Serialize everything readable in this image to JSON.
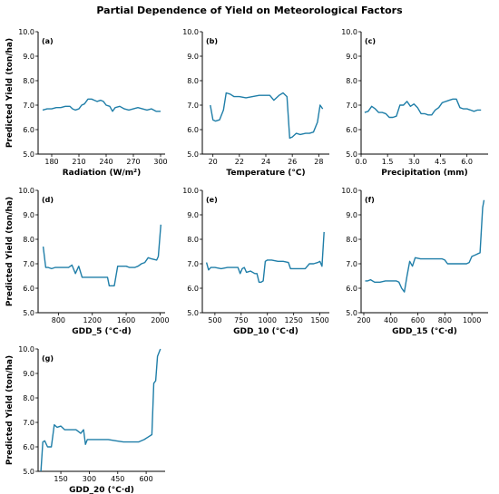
{
  "figure": {
    "title": "Partial Dependence of Yield on Meteorological Factors",
    "ylabel": "Predicted Yield (ton/ha)",
    "line_color": "#1f7ea8"
  },
  "chart_data": [
    {
      "type": "line",
      "panel": "(a)",
      "xlabel": "Radiation (W/m²)",
      "ylabel": "Predicted Yield (ton/ha)",
      "xlim": [
        165,
        305
      ],
      "ylim": [
        5.0,
        10.0
      ],
      "xticks": [
        180,
        210,
        240,
        270,
        300
      ],
      "xtick_labels": [
        "180",
        "210",
        "240",
        "270",
        "300"
      ],
      "yticks": [
        5.0,
        6.0,
        7.0,
        8.0,
        9.0,
        10.0
      ],
      "ytick_labels": [
        "5.0",
        "6.0",
        "7.0",
        "8.0",
        "9.0",
        "10.0"
      ],
      "x": [
        170,
        175,
        180,
        185,
        190,
        195,
        200,
        203,
        206,
        210,
        213,
        216,
        220,
        224,
        227,
        230,
        234,
        237,
        240,
        244,
        247,
        250,
        255,
        260,
        265,
        270,
        275,
        280,
        285,
        290,
        295,
        300
      ],
      "y": [
        6.8,
        6.85,
        6.85,
        6.9,
        6.9,
        6.95,
        6.95,
        6.85,
        6.8,
        6.85,
        7.0,
        7.05,
        7.25,
        7.25,
        7.2,
        7.15,
        7.2,
        7.15,
        7.0,
        6.95,
        6.75,
        6.9,
        6.95,
        6.85,
        6.8,
        6.85,
        6.9,
        6.85,
        6.8,
        6.85,
        6.75,
        6.75
      ]
    },
    {
      "type": "line",
      "panel": "(b)",
      "xlabel": "Temperature (°C)",
      "ylabel": "",
      "xlim": [
        19.2,
        28.8
      ],
      "ylim": [
        5.0,
        10.0
      ],
      "xticks": [
        20,
        22,
        24,
        26,
        28
      ],
      "xtick_labels": [
        "20",
        "22",
        "24",
        "26",
        "28"
      ],
      "yticks": [
        5.0,
        6.0,
        7.0,
        8.0,
        9.0,
        10.0
      ],
      "ytick_labels": [
        "5.0",
        "6.0",
        "7.0",
        "8.0",
        "9.0",
        "10.0"
      ],
      "x": [
        19.8,
        20.0,
        20.2,
        20.5,
        20.8,
        21.0,
        21.3,
        21.6,
        22.0,
        22.5,
        23.0,
        23.5,
        24.0,
        24.3,
        24.6,
        25.0,
        25.3,
        25.6,
        25.8,
        26.0,
        26.3,
        26.6,
        27.0,
        27.3,
        27.6,
        27.9,
        28.1,
        28.3
      ],
      "y": [
        7.0,
        6.4,
        6.35,
        6.4,
        6.8,
        7.5,
        7.45,
        7.35,
        7.35,
        7.3,
        7.35,
        7.4,
        7.4,
        7.4,
        7.2,
        7.4,
        7.5,
        7.35,
        5.65,
        5.7,
        5.85,
        5.8,
        5.85,
        5.85,
        5.9,
        6.3,
        7.0,
        6.85
      ]
    },
    {
      "type": "line",
      "panel": "(c)",
      "xlabel": "Precipitation (mm)",
      "ylabel": "",
      "xlim": [
        0.0,
        7.2
      ],
      "ylim": [
        5.0,
        10.0
      ],
      "xticks": [
        0.0,
        1.5,
        3.0,
        4.5,
        6.0
      ],
      "xtick_labels": [
        "0.0",
        "1.5",
        "3.0",
        "4.5",
        "6.0"
      ],
      "yticks": [
        5.0,
        6.0,
        7.0,
        8.0,
        9.0,
        10.0
      ],
      "ytick_labels": [
        "5.0",
        "6.0",
        "7.0",
        "8.0",
        "9.0",
        "10.0"
      ],
      "x": [
        0.2,
        0.4,
        0.6,
        0.8,
        1.0,
        1.2,
        1.4,
        1.6,
        1.8,
        2.0,
        2.2,
        2.4,
        2.6,
        2.8,
        3.0,
        3.2,
        3.4,
        3.6,
        3.8,
        4.0,
        4.2,
        4.4,
        4.6,
        4.8,
        5.0,
        5.2,
        5.4,
        5.6,
        5.8,
        6.0,
        6.2,
        6.4,
        6.6,
        6.8
      ],
      "y": [
        6.7,
        6.75,
        6.95,
        6.85,
        6.7,
        6.7,
        6.65,
        6.5,
        6.5,
        6.55,
        7.0,
        7.0,
        7.15,
        6.95,
        7.05,
        6.9,
        6.65,
        6.65,
        6.6,
        6.6,
        6.8,
        6.9,
        7.1,
        7.15,
        7.2,
        7.25,
        7.25,
        6.9,
        6.85,
        6.85,
        6.8,
        6.75,
        6.8,
        6.8
      ]
    },
    {
      "type": "line",
      "panel": "(d)",
      "xlabel": "GDD_5 (°C·d)",
      "ylabel": "Predicted Yield (ton/ha)",
      "xlim": [
        560,
        2060
      ],
      "ylim": [
        5.0,
        10.0
      ],
      "xticks": [
        800,
        1200,
        1600,
        2000
      ],
      "xtick_labels": [
        "800",
        "1200",
        "1600",
        "2000"
      ],
      "yticks": [
        5.0,
        6.0,
        7.0,
        8.0,
        9.0,
        10.0
      ],
      "ytick_labels": [
        "5.0",
        "6.0",
        "7.0",
        "8.0",
        "9.0",
        "10.0"
      ],
      "x": [
        620,
        650,
        680,
        720,
        760,
        820,
        880,
        920,
        960,
        1000,
        1040,
        1080,
        1120,
        1200,
        1300,
        1380,
        1400,
        1440,
        1460,
        1500,
        1560,
        1600,
        1640,
        1700,
        1740,
        1780,
        1820,
        1860,
        1900,
        1960,
        1980,
        2010
      ],
      "y": [
        7.7,
        6.85,
        6.85,
        6.8,
        6.85,
        6.85,
        6.85,
        6.85,
        6.95,
        6.6,
        6.9,
        6.45,
        6.45,
        6.45,
        6.45,
        6.45,
        6.1,
        6.1,
        6.1,
        6.9,
        6.9,
        6.9,
        6.85,
        6.85,
        6.9,
        7.0,
        7.05,
        7.25,
        7.2,
        7.15,
        7.3,
        8.6
      ]
    },
    {
      "type": "line",
      "panel": "(e)",
      "xlabel": "GDD_10 (°C·d)",
      "ylabel": "",
      "xlim": [
        380,
        1590
      ],
      "ylim": [
        5.0,
        10.0
      ],
      "xticks": [
        500,
        750,
        1000,
        1250,
        1500
      ],
      "xtick_labels": [
        "500",
        "750",
        "1000",
        "1250",
        "1500"
      ],
      "yticks": [
        5.0,
        6.0,
        7.0,
        8.0,
        9.0,
        10.0
      ],
      "ytick_labels": [
        "5.0",
        "6.0",
        "7.0",
        "8.0",
        "9.0",
        "10.0"
      ],
      "x": [
        420,
        440,
        460,
        500,
        560,
        620,
        680,
        720,
        740,
        760,
        780,
        800,
        840,
        880,
        900,
        920,
        940,
        960,
        980,
        1000,
        1040,
        1100,
        1150,
        1200,
        1220,
        1250,
        1300,
        1340,
        1360,
        1400,
        1440,
        1480,
        1500,
        1520,
        1540
      ],
      "y": [
        7.05,
        6.75,
        6.85,
        6.85,
        6.8,
        6.85,
        6.85,
        6.85,
        6.6,
        6.8,
        6.85,
        6.65,
        6.7,
        6.6,
        6.6,
        6.25,
        6.25,
        6.3,
        7.1,
        7.15,
        7.15,
        7.1,
        7.1,
        7.05,
        6.8,
        6.8,
        6.8,
        6.8,
        6.8,
        7.0,
        7.0,
        7.05,
        7.1,
        6.9,
        8.3
      ]
    },
    {
      "type": "line",
      "panel": "(f)",
      "xlabel": "GDD_15 (°C·d)",
      "ylabel": "",
      "xlim": [
        180,
        1120
      ],
      "ylim": [
        5.0,
        10.0
      ],
      "xticks": [
        200,
        400,
        600,
        800,
        1000
      ],
      "xtick_labels": [
        "200",
        "400",
        "600",
        "800",
        "1000"
      ],
      "yticks": [
        5.0,
        6.0,
        7.0,
        8.0,
        9.0,
        10.0
      ],
      "ytick_labels": [
        "5.0",
        "6.0",
        "7.0",
        "8.0",
        "9.0",
        "10.0"
      ],
      "x": [
        210,
        230,
        250,
        280,
        320,
        360,
        400,
        440,
        460,
        480,
        500,
        520,
        540,
        560,
        580,
        620,
        680,
        740,
        780,
        800,
        820,
        860,
        900,
        960,
        980,
        1000,
        1020,
        1040,
        1060,
        1080,
        1090
      ],
      "y": [
        6.3,
        6.3,
        6.35,
        6.25,
        6.25,
        6.3,
        6.3,
        6.3,
        6.25,
        6.0,
        5.85,
        6.5,
        7.1,
        6.9,
        7.25,
        7.2,
        7.2,
        7.2,
        7.2,
        7.15,
        7.0,
        7.0,
        7.0,
        7.0,
        7.05,
        7.3,
        7.35,
        7.4,
        7.45,
        9.3,
        9.6
      ]
    },
    {
      "type": "line",
      "panel": "(g)",
      "xlabel": "GDD_20 (°C·d)",
      "ylabel": "Predicted Yield (ton/ha)",
      "xlim": [
        30,
        700
      ],
      "ylim": [
        5.0,
        10.0
      ],
      "xticks": [
        150,
        300,
        450,
        600
      ],
      "xtick_labels": [
        "150",
        "300",
        "450",
        "600"
      ],
      "yticks": [
        5.0,
        6.0,
        7.0,
        8.0,
        9.0,
        10.0
      ],
      "ytick_labels": [
        "5.0",
        "6.0",
        "7.0",
        "8.0",
        "9.0",
        "10.0"
      ],
      "x": [
        45,
        55,
        65,
        80,
        100,
        115,
        130,
        150,
        170,
        190,
        210,
        230,
        255,
        270,
        280,
        290,
        300,
        320,
        360,
        400,
        440,
        480,
        520,
        560,
        590,
        610,
        630,
        640,
        650,
        660,
        675
      ],
      "y": [
        5.0,
        6.2,
        6.25,
        6.0,
        6.0,
        6.9,
        6.8,
        6.85,
        6.7,
        6.7,
        6.7,
        6.7,
        6.55,
        6.7,
        6.1,
        6.3,
        6.3,
        6.3,
        6.3,
        6.3,
        6.25,
        6.2,
        6.2,
        6.2,
        6.3,
        6.4,
        6.5,
        8.6,
        8.7,
        9.7,
        10.0
      ]
    }
  ]
}
